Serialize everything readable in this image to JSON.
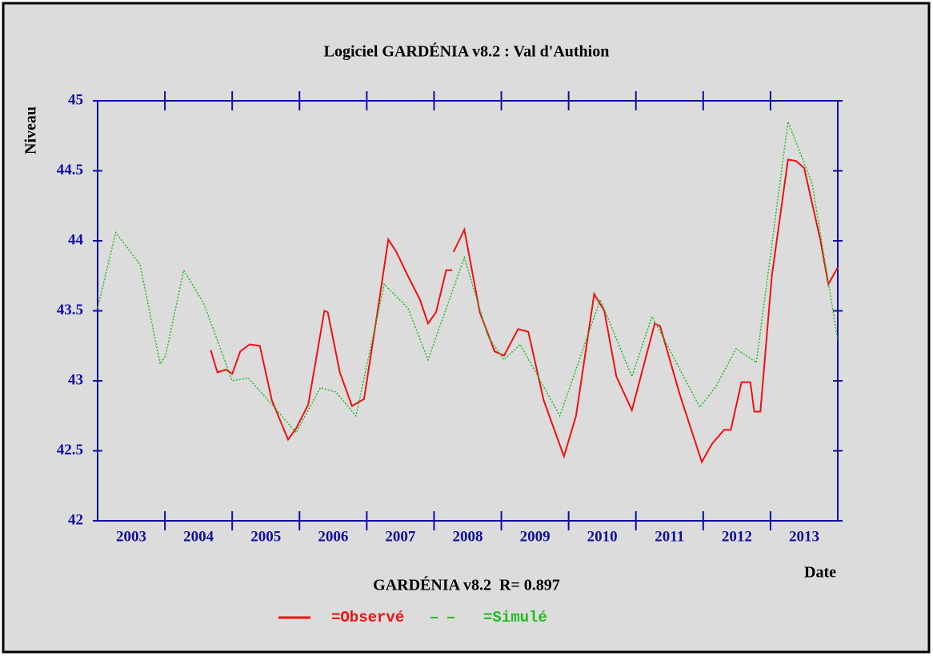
{
  "chart_data": {
    "type": "line",
    "title": "Logiciel GARDÉNIA v8.2 : Val d'Authion",
    "subtitle": "GARDÉNIA v8.2  R= 0.897",
    "x_label": "Date",
    "y_label": "Niveau",
    "xlim": [
      2003,
      2014
    ],
    "ylim": [
      42,
      45
    ],
    "yticks": [
      42,
      42.5,
      43,
      43.5,
      44,
      44.5,
      45
    ],
    "xticks": [
      {
        "value": 2003.5,
        "label": "2003"
      },
      {
        "value": 2004.5,
        "label": "2004"
      },
      {
        "value": 2005.5,
        "label": "2005"
      },
      {
        "value": 2006.5,
        "label": "2006"
      },
      {
        "value": 2007.5,
        "label": "2007"
      },
      {
        "value": 2008.5,
        "label": "2008"
      },
      {
        "value": 2009.5,
        "label": "2009"
      },
      {
        "value": 2010.5,
        "label": "2010"
      },
      {
        "value": 2011.5,
        "label": "2011"
      },
      {
        "value": 2012.5,
        "label": "2012"
      },
      {
        "value": 2013.5,
        "label": "2013"
      }
    ],
    "xtick_marks": [
      2004,
      2005,
      2006,
      2007,
      2008,
      2009,
      2010,
      2011,
      2012,
      2013
    ],
    "axis_color": "#1010a0",
    "series": [
      {
        "name": "=Observé",
        "color": "#ee1111",
        "dashed": false,
        "x": [
          2004.68,
          2004.78,
          2004.91,
          2005.0,
          2005.12,
          2005.26,
          2005.41,
          2005.59,
          2005.83,
          2005.95,
          2006.13,
          2006.37,
          2006.42,
          2006.6,
          2006.78,
          2006.96,
          2007.14,
          2007.32,
          2007.44,
          2007.61,
          2007.79,
          2007.91,
          2008.03,
          2008.18,
          2008.27,
          2008.28,
          2008.29,
          2008.45,
          2008.68,
          2008.9,
          2009.04,
          2009.25,
          2009.4,
          2009.63,
          2009.93,
          2010.11,
          2010.38,
          2010.53,
          2010.71,
          2010.94,
          2011.28,
          2011.36,
          2011.66,
          2011.98,
          2012.13,
          2012.31,
          2012.41,
          2012.57,
          2012.7,
          2012.76,
          2012.85,
          2013.02,
          2013.26,
          2013.38,
          2013.5,
          2013.74,
          2013.86,
          2014.0
        ],
        "values": [
          43.22,
          43.06,
          43.08,
          43.05,
          43.21,
          43.26,
          43.25,
          42.86,
          42.58,
          42.66,
          42.83,
          43.5,
          43.49,
          43.06,
          42.82,
          42.87,
          43.43,
          44.01,
          43.92,
          43.75,
          43.58,
          43.41,
          43.49,
          43.79,
          43.79,
          null,
          43.92,
          44.08,
          43.49,
          43.21,
          43.18,
          43.37,
          43.35,
          42.86,
          42.46,
          42.75,
          43.62,
          43.5,
          43.03,
          42.79,
          43.41,
          43.39,
          42.89,
          42.42,
          42.55,
          42.65,
          42.65,
          42.99,
          42.99,
          42.78,
          42.78,
          43.75,
          44.58,
          44.57,
          44.52,
          44.01,
          43.69,
          43.81
        ]
      },
      {
        "name": "=Simulé",
        "color": "#22bb22",
        "dashed": true,
        "x": [
          2003.0,
          2003.27,
          2003.63,
          2003.93,
          2004.01,
          2004.28,
          2004.58,
          2005.0,
          2005.24,
          2005.59,
          2005.95,
          2006.31,
          2006.54,
          2006.84,
          2007.26,
          2007.61,
          2007.91,
          2008.45,
          2008.8,
          2009.04,
          2009.28,
          2009.87,
          2010.47,
          2010.94,
          2011.24,
          2011.95,
          2012.19,
          2012.49,
          2012.79,
          2013.26,
          2013.62,
          2014.0
        ],
        "values": [
          43.52,
          44.06,
          43.83,
          43.12,
          43.18,
          43.79,
          43.55,
          43.0,
          43.02,
          42.83,
          42.63,
          42.95,
          42.92,
          42.75,
          43.69,
          43.52,
          43.15,
          43.88,
          43.32,
          43.15,
          43.26,
          42.75,
          43.58,
          43.03,
          43.46,
          42.81,
          42.96,
          43.23,
          43.13,
          44.85,
          44.41,
          43.29
        ]
      }
    ]
  }
}
